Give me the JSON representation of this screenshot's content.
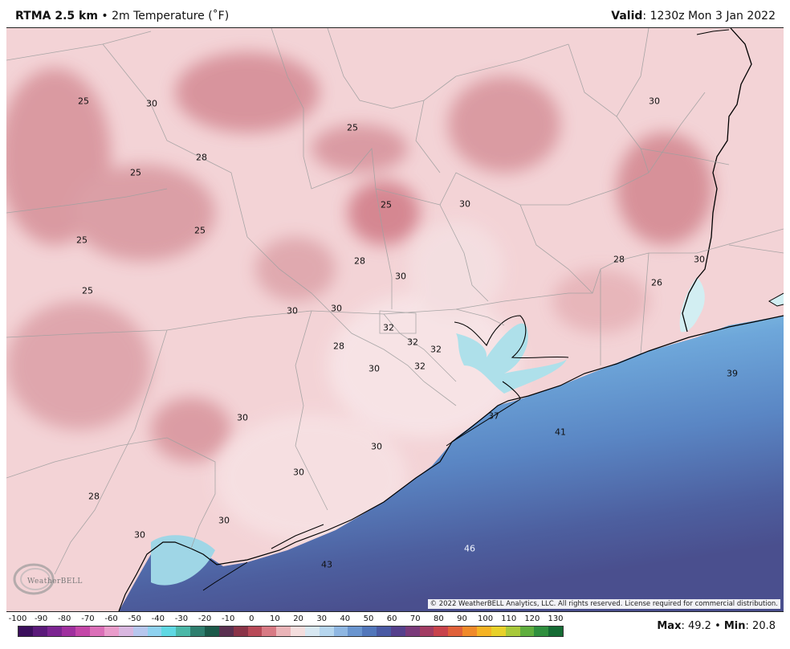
{
  "header": {
    "product": "RTMA 2.5 km",
    "separator": " • ",
    "variable": "2m Temperature (˚F)",
    "valid_label": "Valid",
    "valid_time": ": 1230z Mon 3 Jan 2022"
  },
  "map": {
    "region": "Southeast Texas / Southwest Louisiana coast",
    "colors": {
      "land_base": "#f3d3d6",
      "land_cold": "#d99098",
      "land_light": "#f8e6e8",
      "water_near": "#b7e6ec",
      "water_mid": "#6fa6d8",
      "water_deep": "#4e5d9d",
      "boundaries": "#9a9a9a",
      "coastline": "#000000"
    },
    "labels": [
      {
        "text": "25"
      },
      {
        "text": "30"
      },
      {
        "text": "25"
      },
      {
        "text": "28"
      },
      {
        "text": "25"
      },
      {
        "text": "25"
      },
      {
        "text": "30"
      },
      {
        "text": "25"
      },
      {
        "text": "25"
      },
      {
        "text": "28"
      },
      {
        "text": "30"
      },
      {
        "text": "25"
      },
      {
        "text": "30"
      },
      {
        "text": "30"
      },
      {
        "text": "28"
      },
      {
        "text": "26"
      },
      {
        "text": "30"
      },
      {
        "text": "32"
      },
      {
        "text": "32"
      },
      {
        "text": "32"
      },
      {
        "text": "28"
      },
      {
        "text": "30"
      },
      {
        "text": "32"
      },
      {
        "text": "39"
      },
      {
        "text": "37"
      },
      {
        "text": "41"
      },
      {
        "text": "30"
      },
      {
        "text": "30"
      },
      {
        "text": "30"
      },
      {
        "text": "28"
      },
      {
        "text": "30"
      },
      {
        "text": "30"
      },
      {
        "text": "46"
      },
      {
        "text": "43"
      }
    ],
    "copyright": "© 2022 WeatherBELL Analytics, LLC. All rights reserved. License required for commercial distribution.",
    "logo_text": "WeatherBELL"
  },
  "colorbar": {
    "ticks": [
      "-100",
      "-90",
      "-80",
      "-70",
      "-60",
      "-50",
      "-40",
      "-30",
      "-20",
      "-10",
      "0",
      "10",
      "20",
      "30",
      "40",
      "50",
      "60",
      "70",
      "80",
      "90",
      "100",
      "110",
      "120",
      "130"
    ],
    "colors": [
      "#3b0f5c",
      "#5b1a7a",
      "#7c2591",
      "#a0309f",
      "#c447a8",
      "#db6fb8",
      "#e99ccb",
      "#d9b7e0",
      "#b7c7ee",
      "#8fd2f0",
      "#5fd8e3",
      "#4bb8a8",
      "#2f7f6f",
      "#1c5a4a",
      "#5a3050",
      "#8a3448",
      "#b84a58",
      "#d87a84",
      "#eab4b8",
      "#f4dede",
      "#d8e8f2",
      "#b6d6ee",
      "#8fb7e2",
      "#6a95cf",
      "#5277bb",
      "#4a5aa4",
      "#55408c",
      "#7a3a7a",
      "#a23c63",
      "#c8434c",
      "#e0613a",
      "#f08a2a",
      "#f5b324",
      "#e8d12a",
      "#a8c93a",
      "#5fae3e",
      "#2f8f3e",
      "#156b34"
    ]
  },
  "stats": {
    "max_label": "Max",
    "max_value": ": 49.2",
    "sep": " • ",
    "min_label": "Min",
    "min_value": ": 20.8"
  }
}
